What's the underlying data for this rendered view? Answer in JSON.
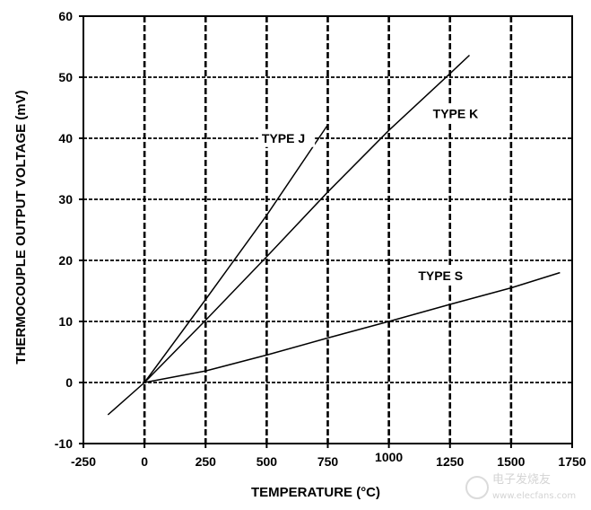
{
  "chart_data": {
    "type": "line",
    "title": "",
    "xlabel": "TEMPERATURE (°C)",
    "ylabel": "THERMOCOUPLE OUTPUT VOLTAGE (mV)",
    "xlim": [
      -250,
      1750
    ],
    "ylim": [
      -10,
      60
    ],
    "x_ticks": [
      -250,
      0,
      250,
      500,
      750,
      1000,
      1250,
      1500,
      1750
    ],
    "y_ticks": [
      -10,
      0,
      10,
      20,
      30,
      40,
      50,
      60
    ],
    "x_tick_labels": [
      "-250",
      "0",
      "250",
      "500",
      "750",
      "1000",
      "1250",
      "1500",
      "1750"
    ],
    "y_tick_labels": [
      "-10",
      "0",
      "10",
      "20",
      "30",
      "40",
      "50",
      "60"
    ],
    "grid": true,
    "series": [
      {
        "name": "TYPE J",
        "x": [
          0,
          250,
          500,
          750
        ],
        "y": [
          0,
          13.6,
          27.4,
          42.2
        ]
      },
      {
        "name": "TYPE K",
        "x": [
          -150,
          0,
          250,
          500,
          750,
          1000,
          1250,
          1330
        ],
        "y": [
          -5.3,
          0,
          10.2,
          20.6,
          31.2,
          41.3,
          50.6,
          53.6
        ]
      },
      {
        "name": "TYPE S",
        "x": [
          0,
          250,
          500,
          750,
          1000,
          1250,
          1500,
          1700
        ],
        "y": [
          0,
          1.9,
          4.5,
          7.3,
          10.0,
          12.8,
          15.5,
          18.0
        ]
      }
    ],
    "annotations": [
      {
        "text": "TYPE J",
        "series": "TYPE J"
      },
      {
        "text": "TYPE K",
        "series": "TYPE K"
      },
      {
        "text": "TYPE S",
        "series": "TYPE S"
      }
    ]
  },
  "watermark": {
    "text": "电子发烧友",
    "subtext": "www.elecfans.com"
  }
}
